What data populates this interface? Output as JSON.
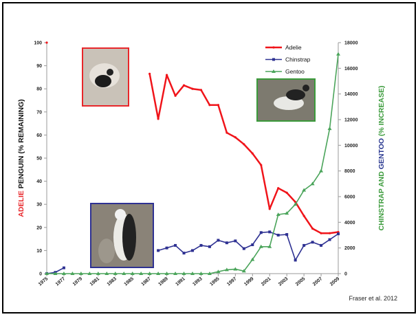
{
  "chart_data": {
    "type": "line",
    "x": [
      1975,
      1976,
      1977,
      1978,
      1979,
      1980,
      1981,
      1982,
      1983,
      1984,
      1985,
      1986,
      1987,
      1988,
      1989,
      1990,
      1991,
      1992,
      1993,
      1994,
      1995,
      1996,
      1997,
      1998,
      1999,
      2000,
      2001,
      2002,
      2003,
      2004,
      2005,
      2006,
      2007,
      2008,
      2009
    ],
    "xlim": [
      1975,
      2009
    ],
    "xticks": [
      1975,
      1977,
      1979,
      1981,
      1983,
      1985,
      1987,
      1989,
      1991,
      1993,
      1995,
      1997,
      1999,
      2001,
      2003,
      2005,
      2007,
      2009
    ],
    "ylim": [
      0,
      100
    ],
    "yticks": [
      0,
      10,
      20,
      30,
      40,
      50,
      60,
      70,
      80,
      90,
      100
    ],
    "y2lim": [
      0,
      18000
    ],
    "y2ticks": [
      0,
      2000,
      4000,
      6000,
      8000,
      10000,
      12000,
      14000,
      16000,
      18000
    ],
    "ylabel_parts": [
      {
        "text": "ADELIE",
        "color": "#e8262a"
      },
      {
        "text": " PENGUIN (% REMAINING)",
        "color": "#111111"
      }
    ],
    "y2label_parts": [
      {
        "text": "CHINSTRAP AND ",
        "color": "#3a9a3a"
      },
      {
        "text": "GENTOO",
        "color": "#2b3990"
      },
      {
        "text": " (% INCREASE)",
        "color": "#3a9a3a"
      }
    ],
    "series": [
      {
        "name": "Adelie",
        "color": "#f0141a",
        "marker": "circle",
        "values": [
          100,
          null,
          null,
          null,
          null,
          null,
          null,
          null,
          null,
          null,
          null,
          null,
          86.5,
          67,
          86,
          77,
          81.5,
          80,
          79.5,
          73,
          73,
          61,
          59,
          56,
          52,
          47,
          28,
          37,
          35,
          31,
          25,
          19.5,
          17.5,
          17.5,
          18
        ]
      },
      {
        "name": "Chinstrap",
        "color": "#2e3192",
        "marker": "square",
        "axis": "y2",
        "values": [
          0,
          100,
          450,
          null,
          null,
          null,
          null,
          null,
          null,
          null,
          null,
          null,
          null,
          1800,
          2000,
          2200,
          1600,
          1800,
          2200,
          2100,
          2600,
          2400,
          2550,
          1950,
          2250,
          3200,
          3250,
          3000,
          3050,
          1050,
          2200,
          2450,
          2200,
          2650,
          3100
        ]
      },
      {
        "name": "Gentoo",
        "color": "#4aa45a",
        "marker": "triangle",
        "axis": "y2",
        "values": [
          0,
          0,
          0,
          0,
          0,
          0,
          0,
          0,
          0,
          0,
          0,
          0,
          0,
          0,
          0,
          0,
          0,
          0,
          0,
          0,
          150,
          300,
          350,
          200,
          1100,
          2100,
          2100,
          4600,
          4700,
          5400,
          6500,
          7000,
          8000,
          11300,
          17100
        ]
      }
    ],
    "source": "Fraser et al. 2012"
  }
}
